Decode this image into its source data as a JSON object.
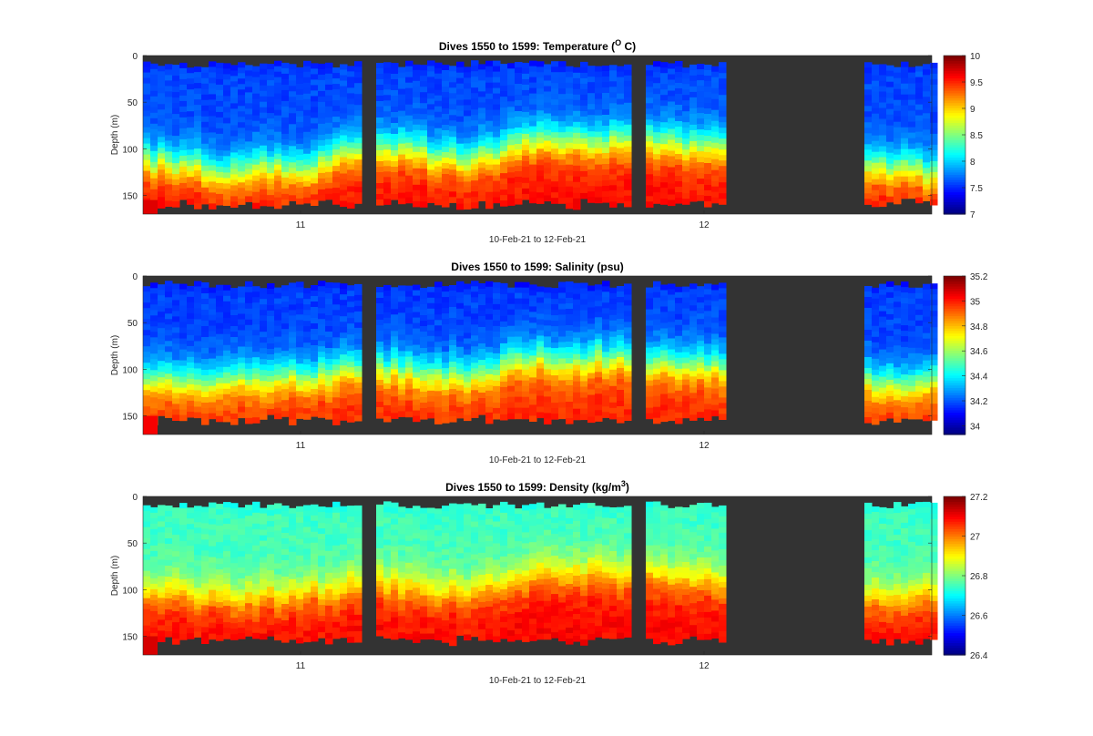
{
  "panels": [
    {
      "title": "Dives 1550 to 1599: Temperature (",
      "title_sup": "O",
      "title_end": " C)",
      "ylabel": "Depth (m)",
      "xlabel": "10-Feb-21 to 12-Feb-21",
      "y_ticks": [
        "0",
        "50",
        "100",
        "150"
      ],
      "x_ticks": [
        "11",
        "12"
      ],
      "colorbar_ticks": [
        "10",
        "9.5",
        "9",
        "8.5",
        "8",
        "7.5",
        "7"
      ]
    },
    {
      "title": "Dives 1550 to 1599: Salinity (psu)",
      "title_sup": "",
      "title_end": "",
      "ylabel": "Depth (m)",
      "xlabel": "10-Feb-21 to 12-Feb-21",
      "y_ticks": [
        "0",
        "50",
        "100",
        "150"
      ],
      "x_ticks": [
        "11",
        "12"
      ],
      "colorbar_ticks": [
        "35.2",
        "35",
        "34.8",
        "34.6",
        "34.4",
        "34.2",
        "34"
      ]
    },
    {
      "title": "Dives 1550 to 1599: Density (kg/m",
      "title_sup": "3",
      "title_end": ")",
      "ylabel": "Depth (m)",
      "xlabel": "10-Feb-21 to 12-Feb-21",
      "y_ticks": [
        "0",
        "50",
        "100",
        "150"
      ],
      "x_ticks": [
        "11",
        "12"
      ],
      "colorbar_ticks": [
        "27.2",
        "27",
        "26.8",
        "26.6",
        "26.4"
      ]
    }
  ],
  "chart_data": [
    {
      "type": "heatmap",
      "variable": "Temperature",
      "title": "Dives 1550 to 1599: Temperature (O C)",
      "xlabel": "10-Feb-21 to 12-Feb-21",
      "ylabel": "Depth (m)",
      "ylim": [
        0,
        170
      ],
      "y_reversed": true,
      "clim": [
        7,
        10
      ],
      "colormap": "jet",
      "nodata_color": "#333333",
      "x_ticks": [
        "11",
        "12"
      ],
      "colorbar_ticks": [
        7,
        7.5,
        8,
        8.5,
        9,
        9.5,
        10
      ],
      "surface_value": 7.3,
      "bottom_value": 9.6,
      "thermocline_depth_m": [
        110,
        120,
        115,
        95,
        110,
        85,
        90,
        92,
        110,
        115,
        120
      ],
      "profile_bottom_m": 155
    },
    {
      "type": "heatmap",
      "variable": "Salinity",
      "title": "Dives 1550 to 1599: Salinity (psu)",
      "xlabel": "10-Feb-21 to 12-Feb-21",
      "ylabel": "Depth (m)",
      "ylim": [
        0,
        170
      ],
      "y_reversed": true,
      "clim": [
        33.93,
        35.2
      ],
      "colormap": "jet",
      "nodata_color": "#333333",
      "x_ticks": [
        "11",
        "12"
      ],
      "colorbar_ticks": [
        34,
        34.2,
        34.4,
        34.6,
        34.8,
        35,
        35.2
      ],
      "surface_value": 34.05,
      "bottom_value": 35.0,
      "halocline_depth_m": [
        105,
        110,
        105,
        95,
        105,
        85,
        85,
        90,
        105,
        110,
        110
      ],
      "profile_bottom_m": 150
    },
    {
      "type": "heatmap",
      "variable": "Density",
      "title": "Dives 1550 to 1599: Density (kg/m3)",
      "xlabel": "10-Feb-21 to 12-Feb-21",
      "ylabel": "Depth (m)",
      "ylim": [
        0,
        170
      ],
      "y_reversed": true,
      "clim": [
        26.4,
        27.2
      ],
      "colormap": "jet",
      "nodata_color": "#333333",
      "x_ticks": [
        "11",
        "12"
      ],
      "colorbar_ticks": [
        26.4,
        26.6,
        26.8,
        27,
        27.2
      ],
      "surface_value": 26.7,
      "bottom_value": 27.1,
      "pycnocline_depth_m": [
        100,
        105,
        100,
        90,
        100,
        80,
        80,
        85,
        100,
        105,
        105
      ],
      "profile_bottom_m": 150
    }
  ]
}
